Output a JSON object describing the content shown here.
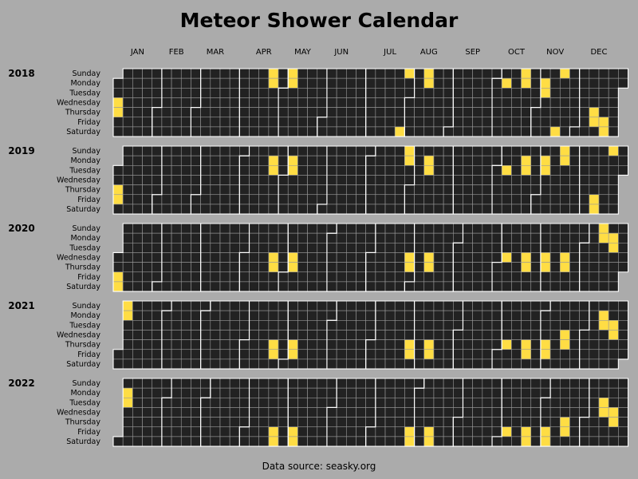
{
  "chart_data": {
    "type": "heatmap",
    "title": "Meteor Shower Calendar",
    "source_note": "Data source: seasky.org",
    "months": [
      "JAN",
      "FEB",
      "MAR",
      "APR",
      "MAY",
      "JUN",
      "JUL",
      "AUG",
      "SEP",
      "OCT",
      "NOV",
      "DEC"
    ],
    "weekdays": [
      "Sunday",
      "Monday",
      "Tuesday",
      "Wednesday",
      "Thursday",
      "Friday",
      "Saturday"
    ],
    "years": [
      "2018",
      "2019",
      "2020",
      "2021",
      "2022"
    ],
    "colors": {
      "empty": "#222222",
      "shower": "#ffdd44",
      "background": "#ababab",
      "gridline": "#999999",
      "month_border": "#ffffff"
    },
    "shower_dates": {
      "2018": [
        "2018-01-03",
        "2018-01-04",
        "2018-04-22",
        "2018-04-23",
        "2018-05-06",
        "2018-05-07",
        "2018-07-28",
        "2018-07-29",
        "2018-08-12",
        "2018-08-13",
        "2018-10-08",
        "2018-10-21",
        "2018-10-22",
        "2018-11-05",
        "2018-11-06",
        "2018-11-17",
        "2018-11-18",
        "2018-12-13",
        "2018-12-14",
        "2018-12-21",
        "2018-12-22"
      ],
      "2019": [
        "2019-01-03",
        "2019-01-04",
        "2019-04-22",
        "2019-04-23",
        "2019-05-06",
        "2019-05-07",
        "2019-07-28",
        "2019-07-29",
        "2019-08-12",
        "2019-08-13",
        "2019-10-08",
        "2019-10-21",
        "2019-10-22",
        "2019-11-04",
        "2019-11-05",
        "2019-11-17",
        "2019-11-18",
        "2019-12-13",
        "2019-12-14",
        "2019-12-22"
      ],
      "2020": [
        "2020-01-03",
        "2020-01-04",
        "2020-04-22",
        "2020-04-23",
        "2020-05-06",
        "2020-05-07",
        "2020-07-29",
        "2020-07-30",
        "2020-08-12",
        "2020-08-13",
        "2020-10-07",
        "2020-10-21",
        "2020-10-22",
        "2020-11-04",
        "2020-11-05",
        "2020-11-18",
        "2020-11-19",
        "2020-12-13",
        "2020-12-14",
        "2020-12-21",
        "2020-12-22"
      ],
      "2021": [
        "2021-01-03",
        "2021-01-04",
        "2021-04-22",
        "2021-04-23",
        "2021-05-06",
        "2021-05-07",
        "2021-07-29",
        "2021-07-30",
        "2021-08-12",
        "2021-08-13",
        "2021-10-07",
        "2021-10-21",
        "2021-10-22",
        "2021-11-04",
        "2021-11-05",
        "2021-11-17",
        "2021-11-18",
        "2021-12-13",
        "2021-12-14",
        "2021-12-21",
        "2021-12-22"
      ],
      "2022": [
        "2022-01-03",
        "2022-01-04",
        "2022-04-22",
        "2022-04-23",
        "2022-05-06",
        "2022-05-07",
        "2022-07-29",
        "2022-07-30",
        "2022-08-12",
        "2022-08-13",
        "2022-10-07",
        "2022-10-21",
        "2022-10-22",
        "2022-11-04",
        "2022-11-05",
        "2022-11-17",
        "2022-11-18",
        "2022-12-13",
        "2022-12-14",
        "2022-12-21",
        "2022-12-22"
      ]
    }
  }
}
